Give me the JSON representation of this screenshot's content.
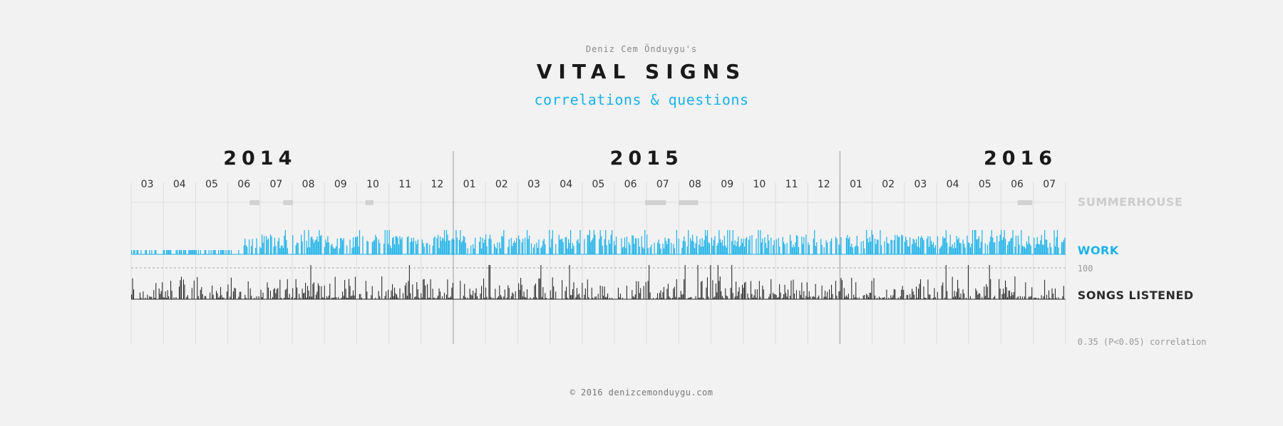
{
  "header": {
    "byline": "Deniz Cem Önduygu's",
    "title": "VITAL SIGNS",
    "subtitle": "correlations & questions"
  },
  "footer": {
    "text": "© 2016 denizcemonduygu.com"
  },
  "colors": {
    "background": "#f2f2f2",
    "work": "#1ab2e8",
    "songs": "#2b2b2b",
    "summerhouse": "#d2d2d2",
    "summerhouse_label": "#cccccc",
    "grid": "#dddddd",
    "year_divider": "#999999"
  },
  "chart_data": {
    "type": "bar",
    "x_range": [
      "2014-03",
      "2016-07"
    ],
    "years": [
      {
        "label": "2014",
        "start_month": "2014-03"
      },
      {
        "label": "2015",
        "start_month": "2015-01"
      },
      {
        "label": "2016",
        "start_month": "2016-01"
      }
    ],
    "months": [
      "03",
      "04",
      "05",
      "06",
      "07",
      "08",
      "09",
      "10",
      "11",
      "12",
      "01",
      "02",
      "03",
      "04",
      "05",
      "06",
      "07",
      "08",
      "09",
      "10",
      "11",
      "12",
      "01",
      "02",
      "03",
      "04",
      "05",
      "06",
      "07"
    ],
    "series": [
      {
        "name": "SUMMERHOUSE",
        "kind": "periods",
        "periods_month_fraction": [
          {
            "month_index": 3.68,
            "length": 0.3
          },
          {
            "month_index": 4.72,
            "length": 0.3
          },
          {
            "month_index": 7.27,
            "length": 0.25
          },
          {
            "month_index": 15.95,
            "length": 0.65
          },
          {
            "month_index": 17.0,
            "length": 0.6
          },
          {
            "month_index": 27.52,
            "length": 0.45
          }
        ]
      },
      {
        "name": "WORK",
        "kind": "daily",
        "note_visible": "",
        "low_period_end_month_index": 3.35,
        "typical_value_range": [
          0,
          100
        ]
      },
      {
        "name": "SONGS LISTENED",
        "kind": "daily",
        "reference_line_value": 100,
        "typical_value_range": [
          0,
          130
        ]
      }
    ],
    "reference_label": "100",
    "correlation_label": "0.35 (P<0.05) correlation"
  }
}
